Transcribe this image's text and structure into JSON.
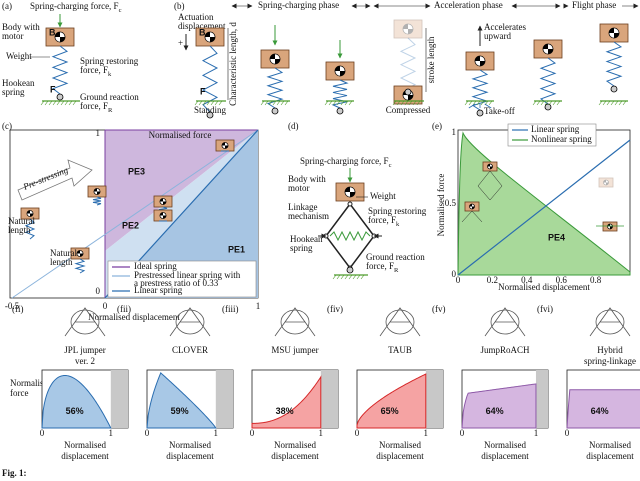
{
  "panel_a": {
    "label": "(a)",
    "charging": {
      "lines": [
        "Spring-charging force, F"
      ],
      "sub": "c"
    },
    "body": [
      "Body with",
      "motor"
    ],
    "body_mark": "B",
    "weight": "Weight",
    "restoring": {
      "lines": [
        "Spring restoring",
        "force, F"
      ],
      "sub": "k"
    },
    "hookean": [
      "Hookean",
      "spring"
    ],
    "ground": {
      "lines": [
        "Ground reaction",
        "force, F"
      ],
      "sub": "R"
    },
    "foot_mark": "F"
  },
  "panel_b": {
    "label": "(b)",
    "phases": [
      "Spring-charging phase",
      "Acceleration phase",
      "Flight phase"
    ],
    "actuation": [
      "Actuation",
      "displacement"
    ],
    "plus": "+",
    "char_length": "Characteristic length, d",
    "body_mark": "B",
    "foot_mark": "F",
    "standing": "Standing",
    "stroke": "stroke length",
    "compressed": "Compressed",
    "accelerates": [
      "Accelerates",
      "upward"
    ],
    "takeoff": "Take-off"
  },
  "panel_c": {
    "label": "(c)",
    "y_label": "Normalised force",
    "x_label": "Normalised displacement",
    "xticks": [
      -0.5,
      0,
      1
    ],
    "yticks": [
      0,
      1
    ],
    "regions": [
      "PE1",
      "PE2",
      "PE3"
    ],
    "prestressing": "Pre-stressing",
    "natural_length_1": [
      "Natural",
      "length"
    ],
    "natural_length_2": [
      "Natural",
      "length"
    ],
    "legend": [
      [
        "Ideal spring"
      ],
      [
        "Prestressed linear spring with",
        "a prestress ratio of 0.33"
      ],
      [
        "Linear spring"
      ]
    ]
  },
  "panel_d": {
    "label": "(d)",
    "charging": {
      "lines": [
        "Spring-charging force, F"
      ],
      "sub": "c"
    },
    "body": [
      "Body with",
      "motor"
    ],
    "weight": "Weight",
    "linkage": [
      "Linkage",
      "mechanism"
    ],
    "restoring": {
      "lines": [
        "Spring restoring",
        "force, F"
      ],
      "sub": "k"
    },
    "hookean": [
      "Hookean",
      "spring"
    ],
    "ground": {
      "lines": [
        "Ground reaction",
        "force, F"
      ],
      "sub": "R"
    }
  },
  "panel_e": {
    "label": "(e)",
    "y_label": "Normalised force",
    "x_label": "Normalised displacement",
    "xticks": [
      0,
      0.2,
      0.4,
      0.6,
      0.8
    ],
    "yticks": [
      0,
      0.5,
      1
    ],
    "legend": [
      "Linear spring",
      "Nonlinear spring"
    ],
    "region": "PE4"
  },
  "panel_f": {
    "y_label": [
      "Normalised",
      "force"
    ],
    "x_label": [
      "Normalised",
      "displacement"
    ],
    "xticks": [
      0,
      1
    ],
    "robots": [
      {
        "label": "(fi)",
        "name": [
          "JPL jumper",
          "ver. 2"
        ],
        "efficiency": "56%"
      },
      {
        "label": "(fii)",
        "name": [
          "CLOVER"
        ],
        "efficiency": "59%"
      },
      {
        "label": "(fiii)",
        "name": [
          "MSU jumper"
        ],
        "efficiency": "38%"
      },
      {
        "label": "(fiv)",
        "name": [
          "TAUB"
        ],
        "efficiency": "65%"
      },
      {
        "label": "(fv)",
        "name": [
          "JumpRoACH"
        ],
        "efficiency": "64%"
      },
      {
        "label": "(fvi)",
        "name": [
          "Hybrid",
          "spring-linkage"
        ],
        "efficiency": "64%"
      }
    ]
  },
  "caption": "Fig. 1:"
}
